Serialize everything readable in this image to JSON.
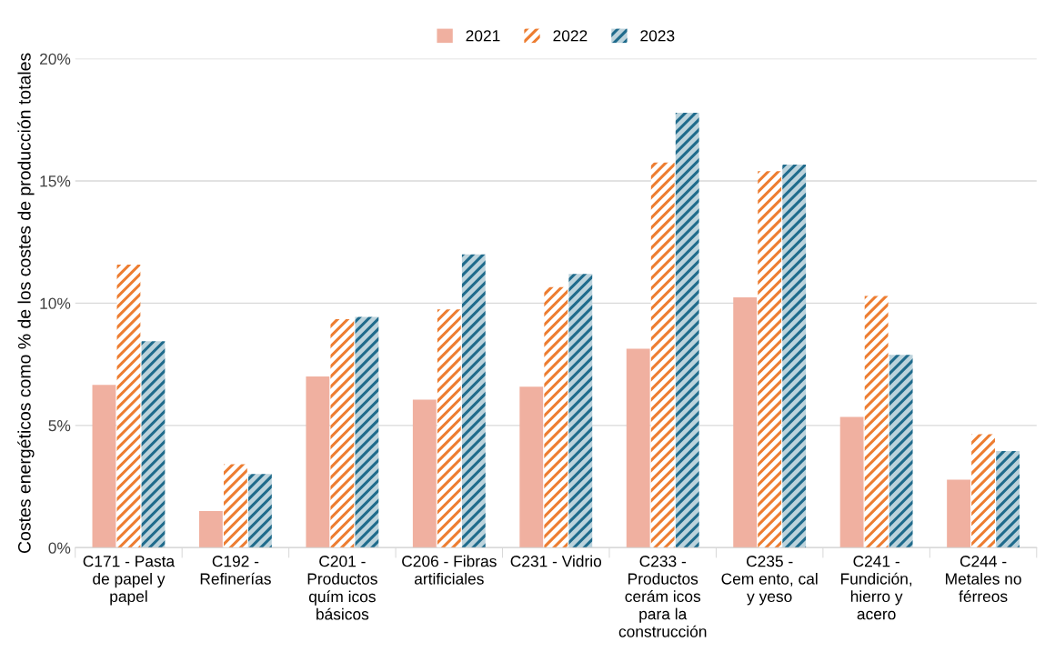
{
  "chart_data": {
    "type": "bar",
    "ylabel": "Costes energéticos como % de los costes de producción totales",
    "categories": [
      "C171 - Pasta\nde papel y\npapel",
      "C192 -\nRefinerías",
      "C201 -\nProductos\nquím icos\nbásicos",
      "C206 - Fibras\nartificiales",
      "C231 - Vidrio",
      "C233 -\nProductos\ncerám icos\npara la\nconstrucción",
      "C235 -\nCem ento, cal\ny yeso",
      "C241 -\nFundición,\nhierro y\nacero",
      "C244 -\nMetales no\nférreos"
    ],
    "series": [
      {
        "name": "2021",
        "color": "#f0b0a0",
        "values": [
          6.66,
          1.5,
          7.0,
          6.05,
          6.58,
          8.14,
          10.24,
          5.35,
          2.78
        ]
      },
      {
        "name": "2022",
        "color": "#ed7d31",
        "values": [
          11.58,
          3.41,
          9.35,
          9.75,
          10.66,
          15.75,
          15.4,
          10.29,
          4.64
        ]
      },
      {
        "name": "2023",
        "color": "#1f6b8c",
        "values": [
          8.44,
          3.01,
          9.44,
          12.0,
          11.2,
          17.79,
          15.67,
          7.89,
          3.95
        ]
      }
    ],
    "ylim": [
      0,
      20
    ],
    "yticks": [
      {
        "value": 0,
        "label": "0%"
      },
      {
        "value": 5,
        "label": "5%"
      },
      {
        "value": 10,
        "label": "10%"
      },
      {
        "value": 15,
        "label": "15%"
      },
      {
        "value": 20,
        "label": "20%"
      }
    ],
    "grid": "y",
    "legend": "top"
  }
}
